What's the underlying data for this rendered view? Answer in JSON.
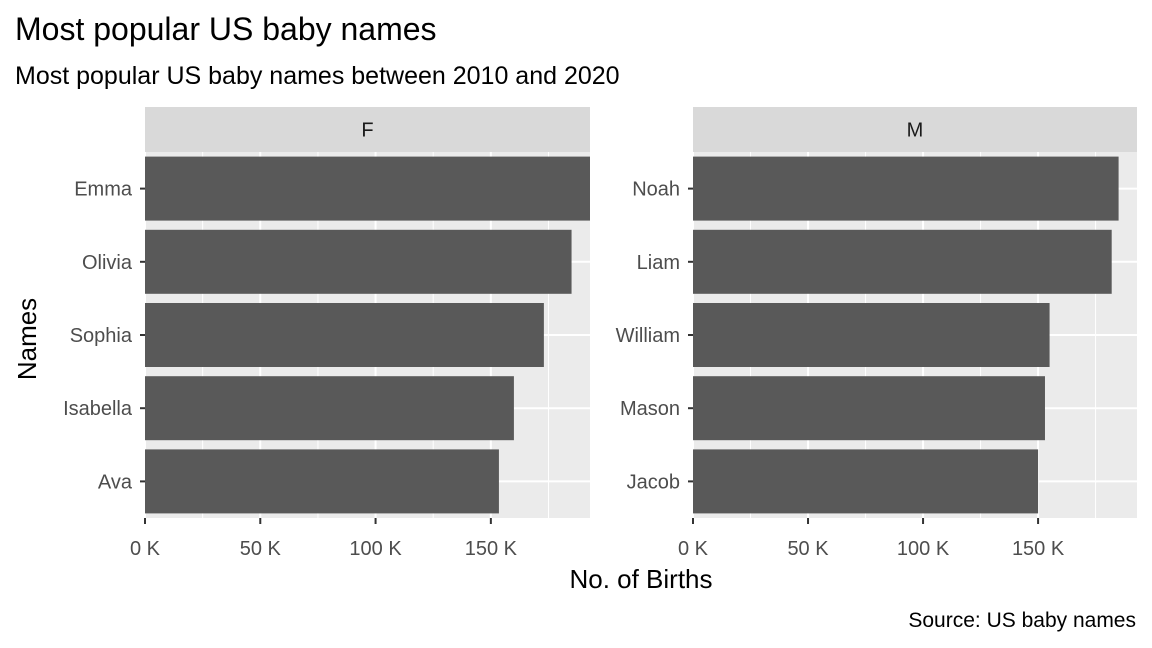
{
  "chart_data": {
    "type": "bar",
    "orientation": "horizontal",
    "title": "Most popular US baby names",
    "subtitle": "Most popular US baby names between 2010 and 2020",
    "caption": "Source: US baby names",
    "xlabel": "No. of Births",
    "ylabel": "Names",
    "x_ticks": [
      0,
      50000,
      100000,
      150000
    ],
    "x_tick_labels": [
      "0 K",
      "50 K",
      "100 K",
      "150 K"
    ],
    "xlim": [
      0,
      193000
    ],
    "grid": true,
    "legend": "none",
    "colors": {
      "bar": "#595959",
      "panel": "#ebebeb",
      "strip": "#d9d9d9",
      "grid": "#ffffff"
    },
    "facets": [
      {
        "label": "F",
        "categories": [
          "Emma",
          "Olivia",
          "Sophia",
          "Isabella",
          "Ava"
        ],
        "values": [
          193000,
          185000,
          173000,
          160000,
          153500
        ]
      },
      {
        "label": "M",
        "categories": [
          "Noah",
          "Liam",
          "William",
          "Mason",
          "Jacob"
        ],
        "values": [
          185000,
          182000,
          155000,
          153000,
          150000
        ]
      }
    ]
  }
}
